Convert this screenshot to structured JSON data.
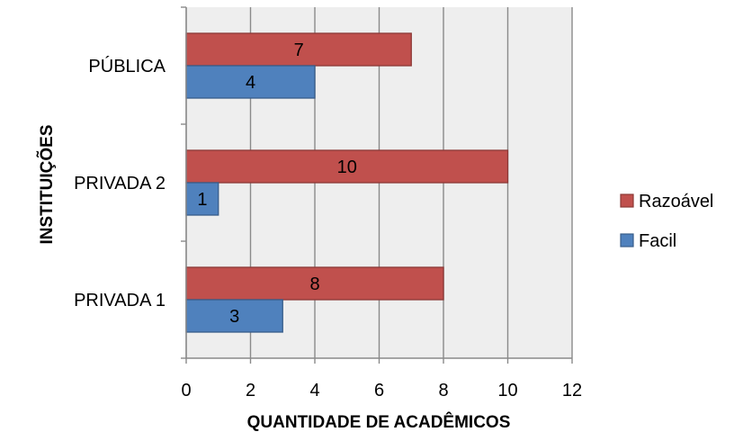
{
  "chart_data": {
    "type": "bar",
    "orientation": "horizontal",
    "categories": [
      "PÚBLICA",
      "PRIVADA 2",
      "PRIVADA 1"
    ],
    "series": [
      {
        "name": "Razoável",
        "values": [
          7,
          10,
          8
        ],
        "color": "#C0504D",
        "border": "#8C3836"
      },
      {
        "name": "Facil",
        "values": [
          4,
          1,
          3
        ],
        "color": "#4F81BD",
        "border": "#385D8A"
      }
    ],
    "xlabel": "QUANTIDADE DE ACADÊMICOS",
    "ylabel": "INSTITUIÇÕES",
    "xlim": [
      0,
      12
    ],
    "xticks": [
      0,
      2,
      4,
      6,
      8,
      10,
      12
    ],
    "grid": true,
    "plot_background": "#EEEEEE",
    "legend_position": "right",
    "data_labels": true
  }
}
